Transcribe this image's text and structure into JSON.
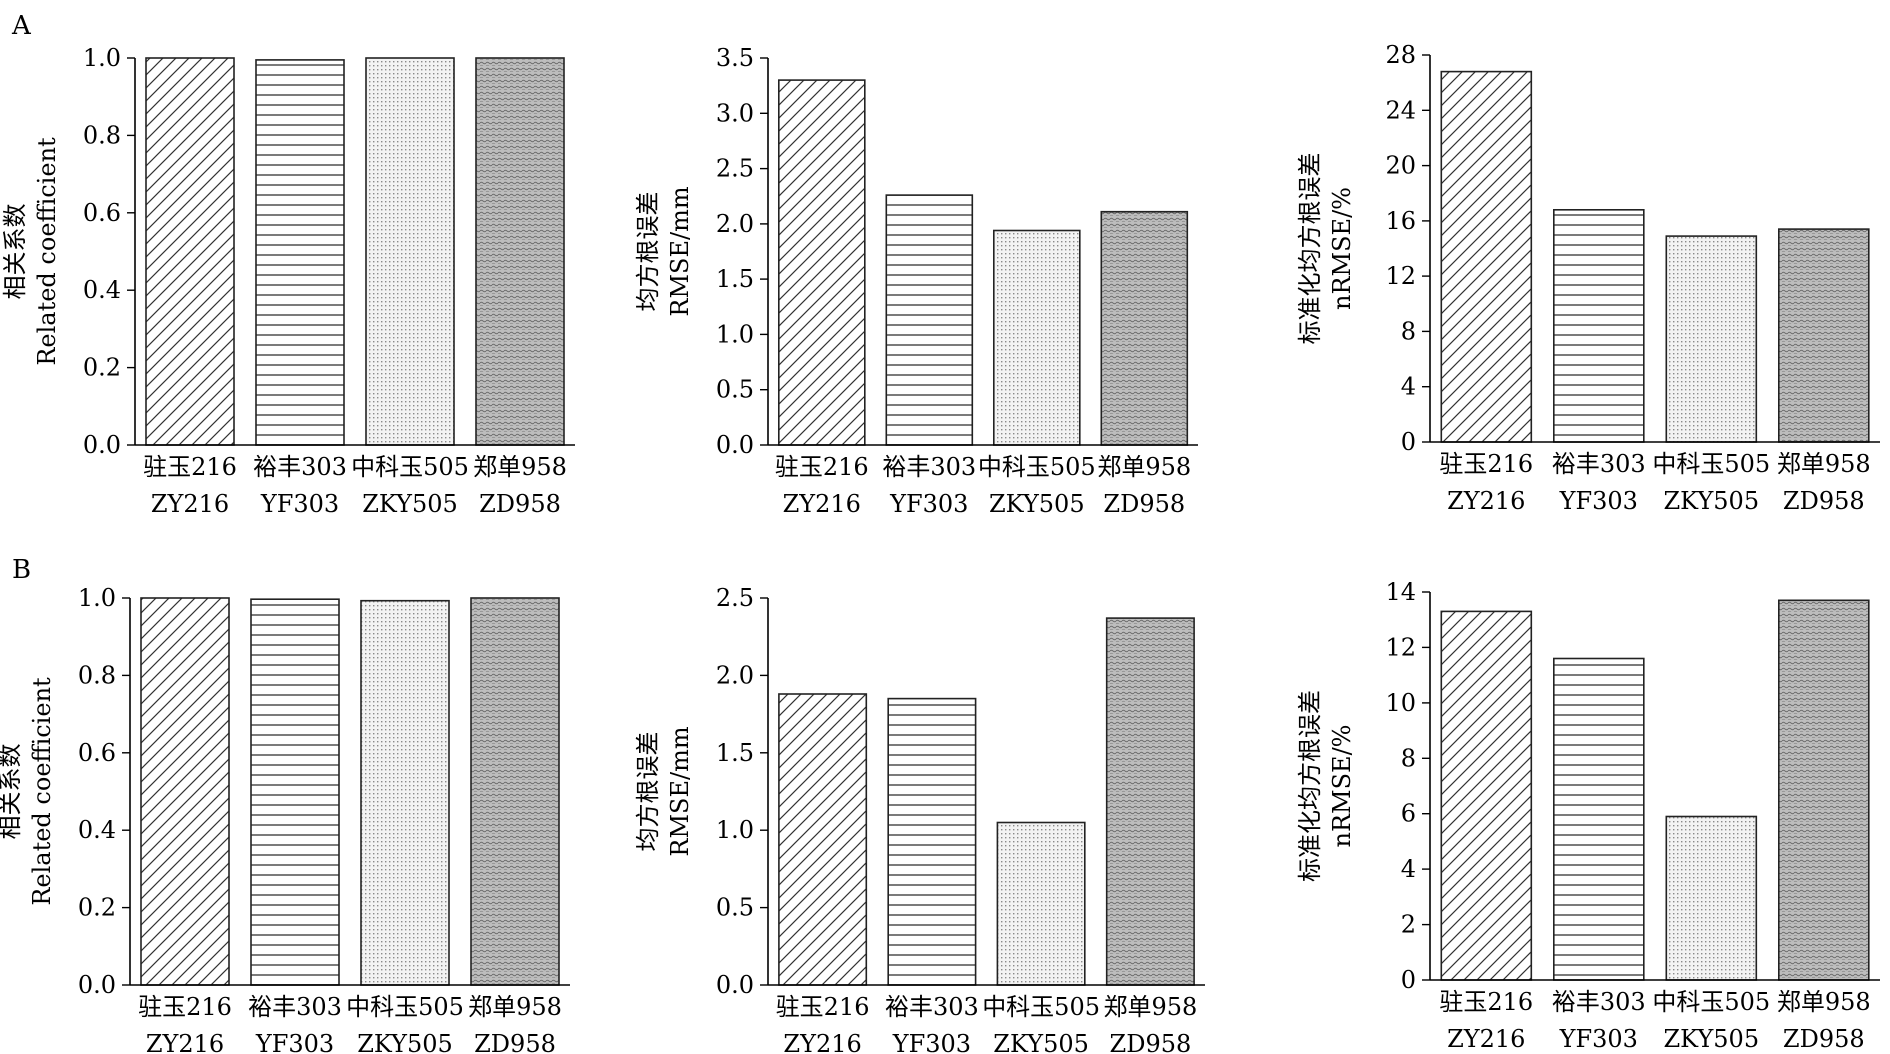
{
  "panels": [
    {
      "label": "A"
    },
    {
      "label": "B"
    }
  ],
  "colors": {
    "axis": "#000000",
    "bar_stroke": "#222222",
    "background": "#ffffff"
  },
  "chart_data": [
    {
      "type": "bar",
      "panel": "A",
      "categories": [
        [
          "驻玉216",
          "ZY216"
        ],
        [
          "裕丰303",
          "YF303"
        ],
        [
          "中科玉505",
          "ZKY505"
        ],
        [
          "郑单958",
          "ZD958"
        ]
      ],
      "values": [
        1.0,
        0.995,
        1.0,
        1.0
      ],
      "ylabel": [
        "相关系数",
        "Related coefficient"
      ],
      "ylim": [
        0,
        1.0
      ],
      "yticks": [
        "0.0",
        "0.2",
        "0.4",
        "0.6",
        "0.8",
        "1.0"
      ],
      "patterns": [
        "diagonal",
        "horizontal",
        "dots",
        "crosshatch"
      ],
      "grid": false
    },
    {
      "type": "bar",
      "panel": "A",
      "categories": [
        [
          "驻玉216",
          "ZY216"
        ],
        [
          "裕丰303",
          "YF303"
        ],
        [
          "中科玉505",
          "ZKY505"
        ],
        [
          "郑单958",
          "ZD958"
        ]
      ],
      "values": [
        3.3,
        2.26,
        1.94,
        2.11
      ],
      "ylabel": [
        "均方根误差",
        "RMSE/mm"
      ],
      "ylim": [
        0,
        3.5
      ],
      "yticks": [
        "0.0",
        "0.5",
        "1.0",
        "1.5",
        "2.0",
        "2.5",
        "3.0",
        "3.5"
      ],
      "patterns": [
        "diagonal",
        "horizontal",
        "dots",
        "crosshatch"
      ],
      "grid": false
    },
    {
      "type": "bar",
      "panel": "A",
      "categories": [
        [
          "驻玉216",
          "ZY216"
        ],
        [
          "裕丰303",
          "YF303"
        ],
        [
          "中科玉505",
          "ZKY505"
        ],
        [
          "郑单958",
          "ZD958"
        ]
      ],
      "values": [
        26.8,
        16.8,
        14.9,
        15.4
      ],
      "ylabel": [
        "标准化均方根误差",
        "nRMSE/%"
      ],
      "ylim": [
        0,
        28
      ],
      "yticks": [
        "0",
        "4",
        "8",
        "12",
        "16",
        "20",
        "24",
        "28"
      ],
      "patterns": [
        "diagonal",
        "horizontal",
        "dots",
        "crosshatch"
      ],
      "grid": false
    },
    {
      "type": "bar",
      "panel": "B",
      "categories": [
        [
          "驻玉216",
          "ZY216"
        ],
        [
          "裕丰303",
          "YF303"
        ],
        [
          "中科玉505",
          "ZKY505"
        ],
        [
          "郑单958",
          "ZD958"
        ]
      ],
      "values": [
        1.0,
        0.997,
        0.993,
        1.0
      ],
      "ylabel": [
        "相关系数",
        "Related coefficient"
      ],
      "ylim": [
        0,
        1.0
      ],
      "yticks": [
        "0.0",
        "0.2",
        "0.4",
        "0.6",
        "0.8",
        "1.0"
      ],
      "patterns": [
        "diagonal",
        "horizontal",
        "dots",
        "crosshatch"
      ],
      "grid": false
    },
    {
      "type": "bar",
      "panel": "B",
      "categories": [
        [
          "驻玉216",
          "ZY216"
        ],
        [
          "裕丰303",
          "YF303"
        ],
        [
          "中科玉505",
          "ZKY505"
        ],
        [
          "郑单958",
          "ZD958"
        ]
      ],
      "values": [
        1.88,
        1.85,
        1.05,
        2.37
      ],
      "ylabel": [
        "均方根误差",
        "RMSE/mm"
      ],
      "ylim": [
        0,
        2.5
      ],
      "yticks": [
        "0.0",
        "0.5",
        "1.0",
        "1.5",
        "2.0",
        "2.5"
      ],
      "patterns": [
        "diagonal",
        "horizontal",
        "dots",
        "crosshatch"
      ],
      "grid": false
    },
    {
      "type": "bar",
      "panel": "B",
      "categories": [
        [
          "驻玉216",
          "ZY216"
        ],
        [
          "裕丰303",
          "YF303"
        ],
        [
          "中科玉505",
          "ZKY505"
        ],
        [
          "郑单958",
          "ZD958"
        ]
      ],
      "values": [
        13.3,
        11.6,
        5.9,
        13.7
      ],
      "ylabel": [
        "标准化均方根误差",
        "nRMSE/%"
      ],
      "ylim": [
        0,
        14
      ],
      "yticks": [
        "0",
        "2",
        "4",
        "6",
        "8",
        "10",
        "12",
        "14"
      ],
      "patterns": [
        "diagonal",
        "horizontal",
        "dots",
        "crosshatch"
      ],
      "grid": false
    }
  ]
}
